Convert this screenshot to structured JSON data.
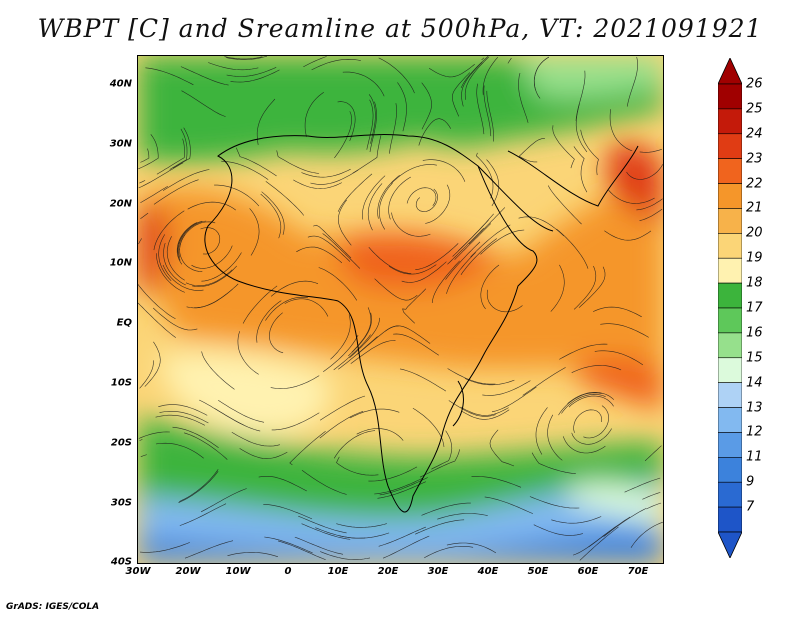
{
  "title": "WBPT [C] and Sreamline at 500hPa, VT: 2021091921",
  "credit": "GrADS: IGES/COLA",
  "map": {
    "lat_ticks": [
      "40N",
      "30N",
      "20N",
      "10N",
      "EQ",
      "10S",
      "20S",
      "30S",
      "40S"
    ],
    "lon_ticks": [
      "30W",
      "20W",
      "10W",
      "0",
      "10E",
      "20E",
      "30E",
      "40E",
      "50E",
      "60E",
      "70E"
    ]
  },
  "colorbar": {
    "labels": [
      "26",
      "25",
      "24",
      "23",
      "22",
      "21",
      "20",
      "19",
      "18",
      "17",
      "16",
      "15",
      "14",
      "13",
      "12",
      "11",
      "9",
      "7"
    ],
    "colors": [
      "#a00000",
      "#c41a0a",
      "#e03c14",
      "#f0641e",
      "#f5962a",
      "#f7b24a",
      "#fbd577",
      "#fff2b0",
      "#3cb43c",
      "#5ec85a",
      "#96e08c",
      "#dcfadc",
      "#aed2f5",
      "#82b9f0",
      "#5a9be6",
      "#3c82dc",
      "#2a6ad2",
      "#1e55c8"
    ]
  }
}
